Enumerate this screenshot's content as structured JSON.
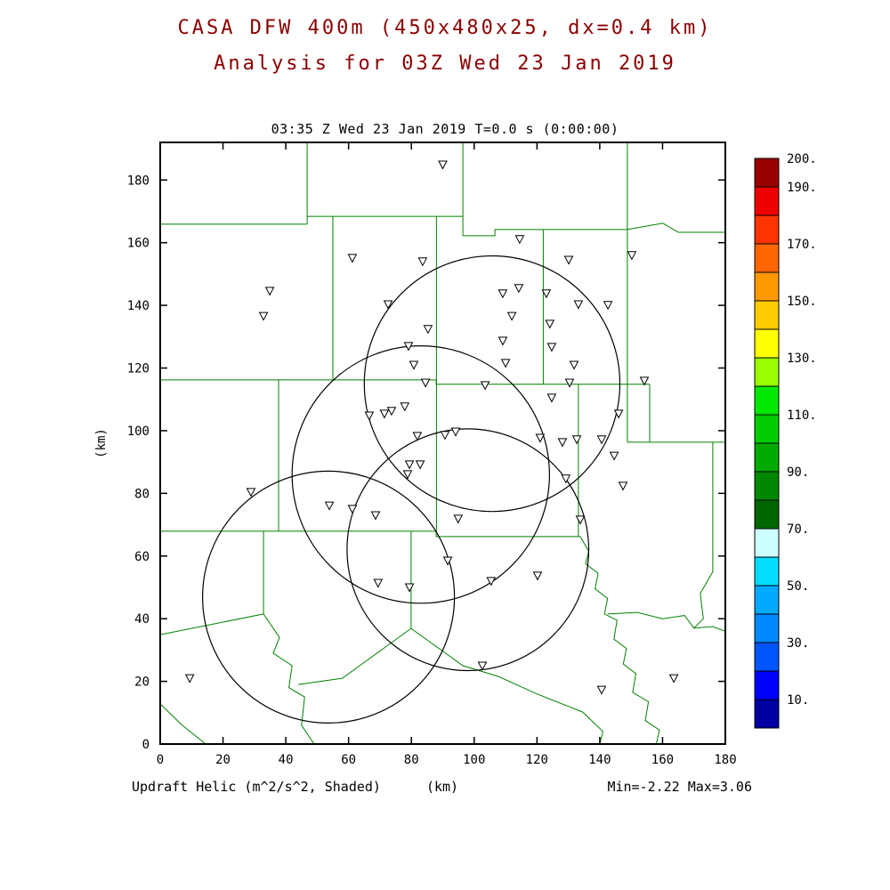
{
  "colors": {
    "title": "#8b0000",
    "county": "#008000",
    "frame": "#000000",
    "circle": "#000000",
    "marker_stroke": "#000000",
    "marker_fill": "#ffffff",
    "text": "#000000"
  },
  "chart_data": {
    "type": "scatter",
    "title": "CASA DFW 400m (450x480x25, dx=0.4 km)",
    "subtitle": "Analysis for 03Z Wed 23 Jan 2019",
    "frame_title": "03:35 Z Wed 23 Jan 2019   T=0.0 s (0:00:00)",
    "field_label": "Updraft Helic (m^2/s^2, Shaded)",
    "x_axis_unit": "(km)",
    "y_axis_unit": "(km)",
    "min_max": "Min=-2.22 Max=3.06",
    "xlim": [
      0,
      180
    ],
    "ylim": [
      0,
      192
    ],
    "x_ticks": [
      0,
      20,
      40,
      60,
      80,
      100,
      120,
      140,
      160,
      180
    ],
    "y_ticks": [
      0,
      20,
      40,
      60,
      80,
      100,
      120,
      140,
      160,
      180
    ],
    "grid": false,
    "stations": [
      [
        90.0,
        184.9
      ],
      [
        114.5,
        161.1
      ],
      [
        61.2,
        155.1
      ],
      [
        83.6,
        154.0
      ],
      [
        130.1,
        154.5
      ],
      [
        150.2,
        156.0
      ],
      [
        34.9,
        144.6
      ],
      [
        109.1,
        143.8
      ],
      [
        114.2,
        145.5
      ],
      [
        123.0,
        143.8
      ],
      [
        72.6,
        140.3
      ],
      [
        133.2,
        140.3
      ],
      [
        32.9,
        136.6
      ],
      [
        112.0,
        136.6
      ],
      [
        142.6,
        140.1
      ],
      [
        85.3,
        132.4
      ],
      [
        124.1,
        134.1
      ],
      [
        109.1,
        128.7
      ],
      [
        79.1,
        127.0
      ],
      [
        124.7,
        126.7
      ],
      [
        80.8,
        121.0
      ],
      [
        110.0,
        121.6
      ],
      [
        131.8,
        121.0
      ],
      [
        84.5,
        115.3
      ],
      [
        103.5,
        114.5
      ],
      [
        130.4,
        115.3
      ],
      [
        154.2,
        115.9
      ],
      [
        124.7,
        110.5
      ],
      [
        66.6,
        104.8
      ],
      [
        71.4,
        105.4
      ],
      [
        73.7,
        106.3
      ],
      [
        77.9,
        107.7
      ],
      [
        146.0,
        105.4
      ],
      [
        81.9,
        98.3
      ],
      [
        90.7,
        98.6
      ],
      [
        94.1,
        99.7
      ],
      [
        121.0,
        97.7
      ],
      [
        128.1,
        96.3
      ],
      [
        132.7,
        97.2
      ],
      [
        140.6,
        97.2
      ],
      [
        144.6,
        92.0
      ],
      [
        79.4,
        89.2
      ],
      [
        82.8,
        89.2
      ],
      [
        78.8,
        86.1
      ],
      [
        129.2,
        84.7
      ],
      [
        147.4,
        82.4
      ],
      [
        28.9,
        80.4
      ],
      [
        53.9,
        76.1
      ],
      [
        61.2,
        75.0
      ],
      [
        133.8,
        71.6
      ],
      [
        68.6,
        73.0
      ],
      [
        94.9,
        71.9
      ],
      [
        91.6,
        58.5
      ],
      [
        69.4,
        51.4
      ],
      [
        79.4,
        50.0
      ],
      [
        105.4,
        52.0
      ],
      [
        120.2,
        53.7
      ],
      [
        102.6,
        25.0
      ],
      [
        9.4,
        21.0
      ],
      [
        140.6,
        17.3
      ],
      [
        163.6,
        21.0
      ]
    ],
    "radar_circles": [
      {
        "cx": 105.7,
        "cy": 115.0,
        "r": 40.7
      },
      {
        "cx": 83.0,
        "cy": 86.0,
        "r": 41.0
      },
      {
        "cx": 53.6,
        "cy": 46.9,
        "r": 40.1
      },
      {
        "cx": 98.0,
        "cy": 62.0,
        "r": 38.5
      }
    ],
    "county_lines": [
      [
        [
          0,
          165.9
        ],
        [
          46.8,
          165.9
        ]
      ],
      [
        [
          46.8,
          192
        ],
        [
          46.8,
          165.9
        ]
      ],
      [
        [
          46.8,
          168.4
        ],
        [
          96.4,
          168.4
        ]
      ],
      [
        [
          96.4,
          192
        ],
        [
          96.4,
          162.2
        ]
      ],
      [
        [
          96.4,
          162.2
        ],
        [
          106.6,
          162.2
        ],
        [
          106.6,
          164.2
        ],
        [
          148.8,
          164.2
        ]
      ],
      [
        [
          148.8,
          192
        ],
        [
          148.8,
          164.2
        ]
      ],
      [
        [
          148.8,
          164.2
        ],
        [
          160.1,
          166.2
        ],
        [
          165.0,
          163.3
        ],
        [
          180,
          163.3
        ]
      ],
      [
        [
          148.8,
          164.2
        ],
        [
          148.8,
          96.3
        ]
      ],
      [
        [
          0,
          116.2
        ],
        [
          87.9,
          116.2
        ],
        [
          87.9,
          114.8
        ],
        [
          155.9,
          114.8
        ]
      ],
      [
        [
          155.9,
          114.8
        ],
        [
          155.9,
          96.3
        ]
      ],
      [
        [
          148.8,
          96.3
        ],
        [
          180,
          96.3
        ]
      ],
      [
        [
          55.0,
          168.4
        ],
        [
          55.0,
          116.2
        ]
      ],
      [
        [
          88.0,
          168.4
        ],
        [
          88.0,
          116.2
        ]
      ],
      [
        [
          122.0,
          164.2
        ],
        [
          122.0,
          114.8
        ]
      ],
      [
        [
          0,
          67.9
        ],
        [
          87.9,
          67.9
        ],
        [
          87.9,
          66.2
        ],
        [
          133.8,
          66.2
        ]
      ],
      [
        [
          37.7,
          116.2
        ],
        [
          37.7,
          67.9
        ]
      ],
      [
        [
          88.0,
          116.2
        ],
        [
          88.0,
          67.9
        ]
      ],
      [
        [
          133.2,
          114.8
        ],
        [
          133.2,
          66.2
        ]
      ],
      [
        [
          133.8,
          66.2
        ],
        [
          136.5,
          61.5
        ],
        [
          135.5,
          57.5
        ],
        [
          139.5,
          54.5
        ],
        [
          138.5,
          49.5
        ],
        [
          142.5,
          46.5
        ],
        [
          141.5,
          41.5
        ],
        [
          145.5,
          39.5
        ],
        [
          144.5,
          33.5
        ],
        [
          148.5,
          30.5
        ],
        [
          147.5,
          25.5
        ],
        [
          151.5,
          22.5
        ],
        [
          150.5,
          16.5
        ],
        [
          155.5,
          13.5
        ],
        [
          154.5,
          7.5
        ],
        [
          159.0,
          4.5
        ],
        [
          158.0,
          0
        ]
      ],
      [
        [
          142.5,
          41.5
        ],
        [
          152,
          42
        ],
        [
          160,
          40
        ],
        [
          167,
          41
        ],
        [
          170,
          37
        ],
        [
          176,
          37.5
        ],
        [
          180,
          36
        ]
      ],
      [
        [
          176,
          96.3
        ],
        [
          176,
          55
        ],
        [
          172,
          48
        ],
        [
          173,
          40
        ],
        [
          170,
          37
        ]
      ],
      [
        [
          0,
          34.9
        ],
        [
          32.9,
          41.5
        ]
      ],
      [
        [
          32.9,
          67.9
        ],
        [
          32.9,
          41.5
        ]
      ],
      [
        [
          32.9,
          41.5
        ],
        [
          38,
          34
        ],
        [
          36,
          29
        ],
        [
          42,
          25
        ],
        [
          41,
          18
        ],
        [
          46,
          15
        ],
        [
          45,
          6
        ],
        [
          49,
          0
        ]
      ],
      [
        [
          44,
          19
        ],
        [
          58,
          21
        ],
        [
          79.9,
          36.9
        ]
      ],
      [
        [
          79.9,
          67.9
        ],
        [
          79.9,
          36.9
        ]
      ],
      [
        [
          79.9,
          36.9
        ],
        [
          96.4,
          25.0
        ],
        [
          107.7,
          21.6
        ],
        [
          120,
          16
        ],
        [
          134.6,
          10.2
        ],
        [
          141,
          4
        ],
        [
          140,
          0
        ]
      ],
      [
        [
          0,
          12.8
        ],
        [
          7,
          6
        ],
        [
          14.5,
          0
        ]
      ]
    ],
    "colorbar": {
      "labels": [
        {
          "text": "200.",
          "value": 200
        },
        {
          "text": "190.",
          "value": 190
        },
        {
          "text": "170.",
          "value": 170
        },
        {
          "text": "150.",
          "value": 150
        },
        {
          "text": "130.",
          "value": 130
        },
        {
          "text": "110.",
          "value": 110
        },
        {
          "text": "90.",
          "value": 90
        },
        {
          "text": "70.",
          "value": 70
        },
        {
          "text": "50.",
          "value": 50
        },
        {
          "text": "30.",
          "value": 30
        },
        {
          "text": "10.",
          "value": 10
        }
      ],
      "segments": [
        {
          "range": [
            0,
            10
          ],
          "color": "#0000a0"
        },
        {
          "range": [
            10,
            20
          ],
          "color": "#0000ff"
        },
        {
          "range": [
            20,
            30
          ],
          "color": "#0055ff"
        },
        {
          "range": [
            30,
            40
          ],
          "color": "#0088ff"
        },
        {
          "range": [
            40,
            50
          ],
          "color": "#00aaff"
        },
        {
          "range": [
            50,
            60
          ],
          "color": "#00ddff"
        },
        {
          "range": [
            60,
            70
          ],
          "color": "#ccffff"
        },
        {
          "range": [
            70,
            80
          ],
          "color": "#006600"
        },
        {
          "range": [
            80,
            90
          ],
          "color": "#008800"
        },
        {
          "range": [
            90,
            100
          ],
          "color": "#00aa00"
        },
        {
          "range": [
            100,
            110
          ],
          "color": "#00cc00"
        },
        {
          "range": [
            110,
            120
          ],
          "color": "#00e800"
        },
        {
          "range": [
            120,
            130
          ],
          "color": "#99ff00"
        },
        {
          "range": [
            130,
            140
          ],
          "color": "#ffff00"
        },
        {
          "range": [
            140,
            150
          ],
          "color": "#ffcc00"
        },
        {
          "range": [
            150,
            160
          ],
          "color": "#ff9900"
        },
        {
          "range": [
            160,
            170
          ],
          "color": "#ff6600"
        },
        {
          "range": [
            170,
            180
          ],
          "color": "#ff3300"
        },
        {
          "range": [
            180,
            190
          ],
          "color": "#ee0000"
        },
        {
          "range": [
            190,
            200
          ],
          "color": "#990000"
        }
      ]
    }
  }
}
